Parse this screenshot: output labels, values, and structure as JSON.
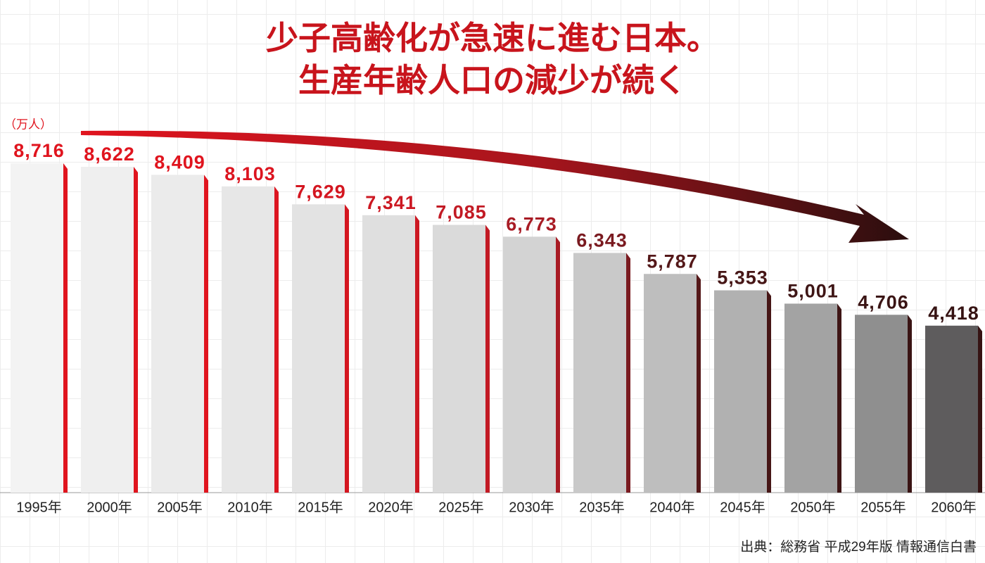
{
  "chart_data": {
    "type": "bar",
    "title": [
      "少子高齢化が急速に進む日本。",
      "生産年齢人口の減少が続く"
    ],
    "unit": "（万人）",
    "source": "出典：総務省 平成29年版 情報通信白書",
    "categories": [
      "1995年",
      "2000年",
      "2005年",
      "2010年",
      "2015年",
      "2020年",
      "2025年",
      "2030年",
      "2035年",
      "2040年",
      "2045年",
      "2050年",
      "2055年",
      "2060年"
    ],
    "values": [
      8716,
      8622,
      8409,
      8103,
      7629,
      7341,
      7085,
      6773,
      6343,
      5787,
      5353,
      5001,
      4706,
      4418
    ],
    "value_labels": [
      "8,716",
      "8,622",
      "8,409",
      "8,103",
      "7,629",
      "7,341",
      "7,085",
      "6,773",
      "6,343",
      "5,787",
      "5,353",
      "5,001",
      "4,706",
      "4,418"
    ],
    "colors": [
      "#f3f3f3",
      "#efefef",
      "#ebebeb",
      "#e7e7e7",
      "#e3e3e3",
      "#dfdfdf",
      "#dadada",
      "#d3d3d3",
      "#c9c9c9",
      "#bebebe",
      "#b1b1b1",
      "#a3a3a3",
      "#8f8f8f",
      "#5e5c5d"
    ],
    "label_colors": [
      "#e0141e",
      "#e0141e",
      "#e0141e",
      "#dc1520",
      "#d41620",
      "#cc1822",
      "#c21a24",
      "#a81b24",
      "#7a1a20",
      "#541819",
      "#461616",
      "#3e1515",
      "#3a1414",
      "#361313"
    ],
    "ylim": [
      0,
      10000
    ]
  }
}
